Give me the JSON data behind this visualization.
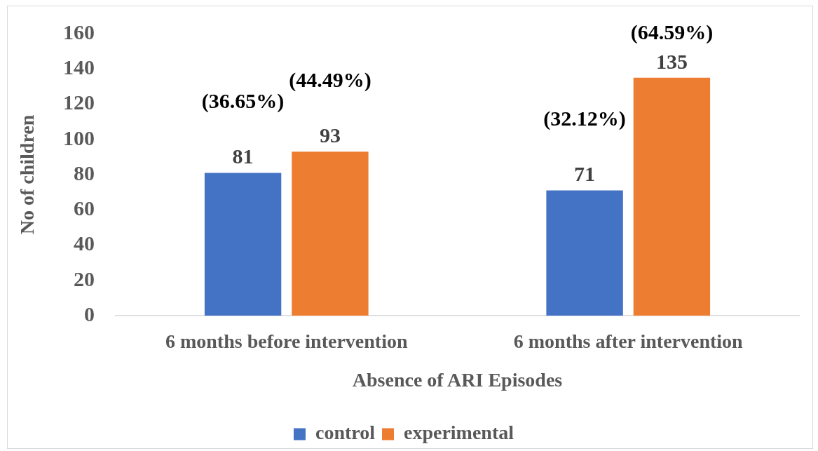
{
  "chart_data": {
    "type": "bar",
    "xlabel": "Absence of ARI Episodes",
    "ylabel": "No of children",
    "categories": [
      "6 months before intervention",
      "6 months after intervention"
    ],
    "series": [
      {
        "name": "control",
        "color": "#4472c4",
        "values": [
          81,
          71
        ]
      },
      {
        "name": "experimental",
        "color": "#ed7d31",
        "values": [
          93,
          135
        ]
      }
    ],
    "ylim": [
      0,
      160
    ],
    "yticks": [
      0,
      20,
      40,
      60,
      80,
      100,
      120,
      140,
      160
    ],
    "data_labels": true,
    "legend": "bottom",
    "annotations": [
      "(36.65%)",
      "(44.49%)",
      "(32.12%)",
      "(64.59%)"
    ]
  }
}
